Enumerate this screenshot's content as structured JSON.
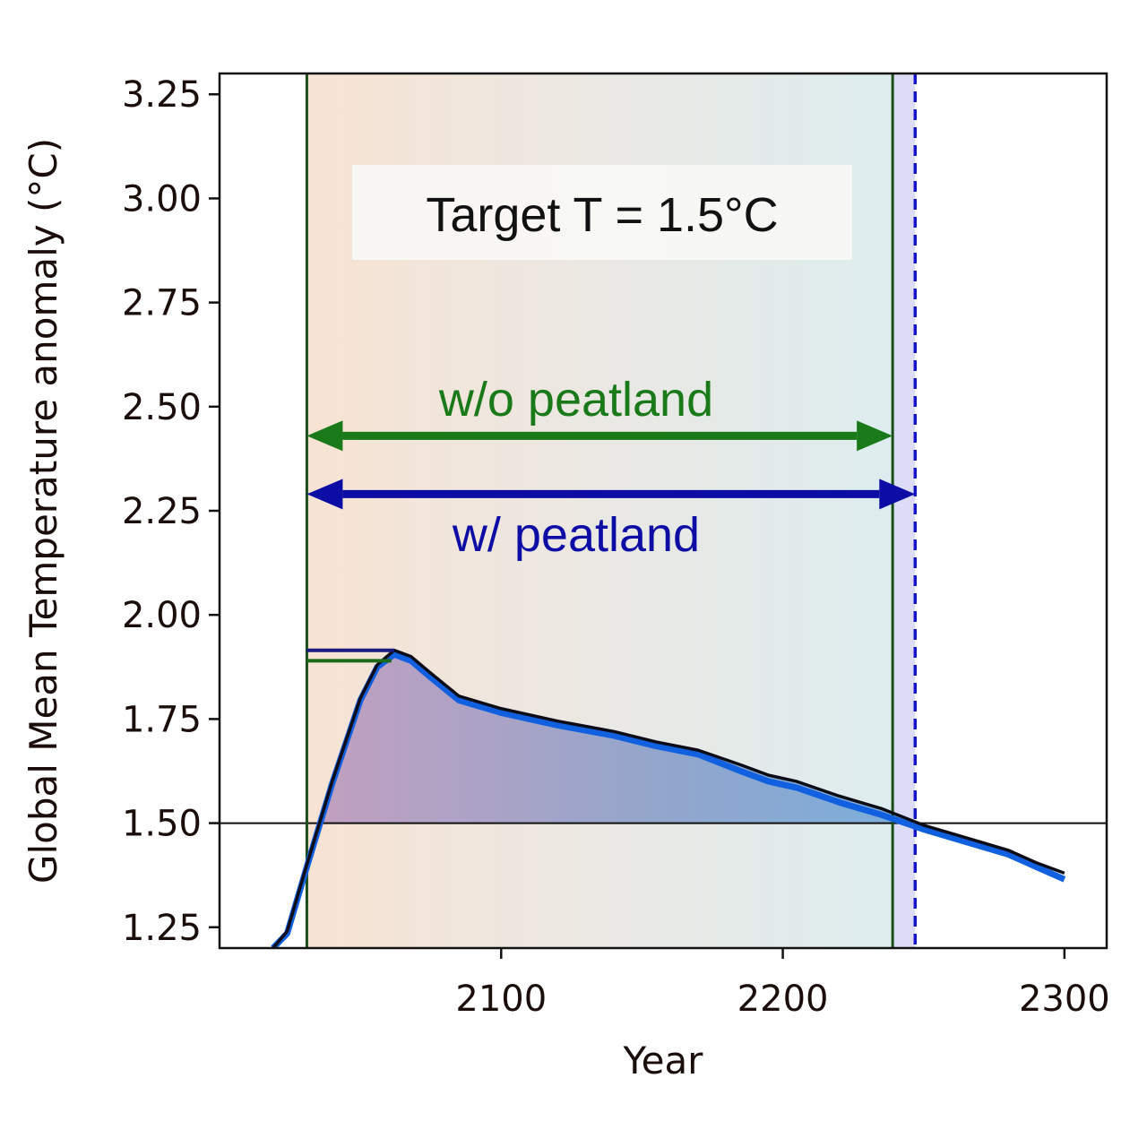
{
  "chart_data": {
    "type": "line",
    "title": "",
    "xlabel": "Year",
    "ylabel": "Global Mean Temperature anomaly (°C)",
    "xlim": [
      2000,
      2315
    ],
    "ylim": [
      1.2,
      3.3
    ],
    "xticks": [
      2100,
      2200,
      2300
    ],
    "xtick_labels": [
      "2100",
      "2200",
      "2300"
    ],
    "yticks": [
      1.25,
      1.5,
      1.75,
      2.0,
      2.25,
      2.5,
      2.75,
      3.0,
      3.25
    ],
    "ytick_labels": [
      "1.25",
      "1.50",
      "1.75",
      "2.00",
      "2.25",
      "2.50",
      "2.75",
      "3.00",
      "3.25"
    ],
    "grid": false,
    "reference_line": {
      "y": 1.5
    },
    "series": [
      {
        "color": "#0d0d1a",
        "x": [
          2019,
          2024,
          2031,
          2040,
          2050,
          2056,
          2062,
          2068,
          2075,
          2085,
          2100,
          2120,
          2140,
          2155,
          2170,
          2185,
          2195,
          2205,
          2220,
          2235,
          2250,
          2265,
          2280,
          2290,
          2300
        ],
        "y": [
          1.2,
          1.24,
          1.4,
          1.6,
          1.8,
          1.88,
          1.915,
          1.9,
          1.86,
          1.805,
          1.775,
          1.745,
          1.72,
          1.695,
          1.675,
          1.64,
          1.615,
          1.6,
          1.565,
          1.535,
          1.495,
          1.465,
          1.435,
          1.405,
          1.38
        ]
      },
      {
        "color": "#1060e0",
        "x": [
          2019,
          2024,
          2031,
          2040,
          2050,
          2056,
          2062,
          2068,
          2075,
          2085,
          2100,
          2120,
          2140,
          2155,
          2170,
          2185,
          2195,
          2205,
          2220,
          2235,
          2250,
          2265,
          2280,
          2290,
          2300
        ],
        "y": [
          1.2,
          1.235,
          1.395,
          1.595,
          1.795,
          1.875,
          1.905,
          1.89,
          1.85,
          1.795,
          1.765,
          1.735,
          1.71,
          1.685,
          1.665,
          1.625,
          1.6,
          1.585,
          1.55,
          1.52,
          1.485,
          1.455,
          1.425,
          1.395,
          1.365
        ]
      }
    ],
    "peak_markers": [
      {
        "color": "#1a1a80",
        "x": [
          2031,
          2062
        ],
        "y": 1.915
      },
      {
        "color": "#1a6b1a",
        "x": [
          2031,
          2061
        ],
        "y": 1.89
      }
    ],
    "vertical_lines": [
      {
        "x": 2031,
        "color": "#1a4d1a",
        "style": "solid"
      },
      {
        "x": 2239,
        "color": "#1a4d1a",
        "style": "solid"
      },
      {
        "x": 2247,
        "color": "#1515c8",
        "style": "dashed"
      }
    ],
    "annotations": {
      "box_text": "Target T = 1.5°C",
      "arrow_green": {
        "label": "w/o peatland",
        "x_start": 2031,
        "x_end": 2239,
        "y": 2.43,
        "color": "#1a7a1a"
      },
      "arrow_blue": {
        "label": "w/ peatland",
        "x_start": 2031,
        "x_end": 2247,
        "y": 2.29,
        "color": "#0d0da6"
      }
    }
  }
}
